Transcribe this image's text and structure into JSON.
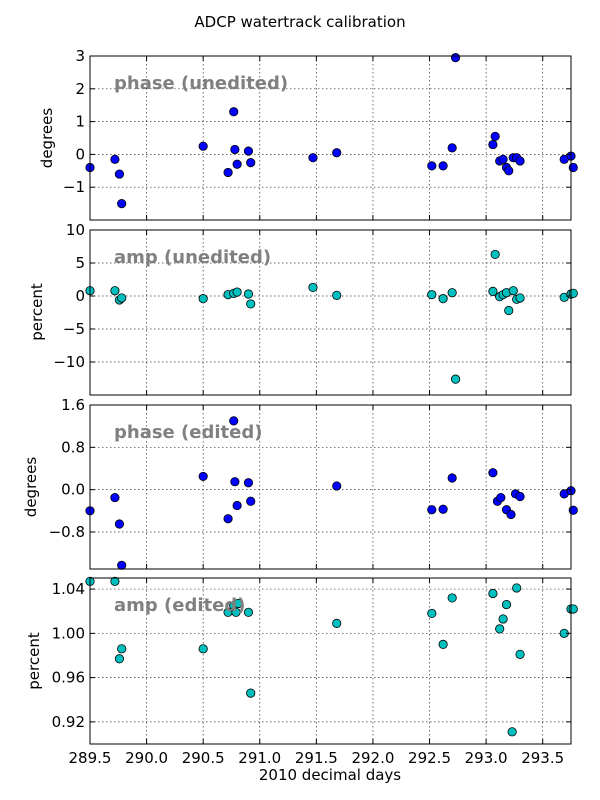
{
  "figure": {
    "title": "ADCP watertrack calibration",
    "xlabel": "2010 decimal days"
  },
  "colors": {
    "phase_marker": "#0000ff",
    "amp_marker": "#00bfbf",
    "annotation_text": "#808080"
  },
  "chart_data": [
    {
      "type": "scatter",
      "annotation": "phase (unedited)",
      "xlabel": "",
      "ylabel": "degrees",
      "xlim": [
        289.5,
        293.75
      ],
      "ylim": [
        -2,
        3
      ],
      "xticks": [
        289.5,
        290.0,
        290.5,
        291.0,
        291.5,
        292.0,
        292.5,
        293.0,
        293.5
      ],
      "yticks": [
        -1,
        0,
        1,
        2,
        3
      ],
      "ytick_labels": [
        "−1",
        "0",
        "1",
        "2",
        "3"
      ],
      "grid": true,
      "marker_color": "#0000ff",
      "x": [
        289.5,
        289.72,
        289.76,
        289.78,
        290.5,
        290.72,
        290.77,
        290.78,
        290.8,
        290.9,
        290.92,
        291.47,
        291.68,
        292.52,
        292.62,
        292.7,
        292.73,
        293.06,
        293.08,
        293.12,
        293.15,
        293.18,
        293.2,
        293.24,
        293.27,
        293.3,
        293.69,
        293.75,
        293.77
      ],
      "y": [
        -0.4,
        -0.15,
        -0.6,
        -1.5,
        0.25,
        -0.55,
        1.3,
        0.15,
        -0.3,
        0.1,
        -0.25,
        -0.1,
        0.05,
        -0.35,
        -0.35,
        0.2,
        2.95,
        0.3,
        0.55,
        -0.2,
        -0.15,
        -0.4,
        -0.5,
        -0.1,
        -0.1,
        -0.2,
        -0.15,
        -0.05,
        -0.4
      ]
    },
    {
      "type": "scatter",
      "annotation": "amp (unedited)",
      "xlabel": "",
      "ylabel": "percent",
      "xlim": [
        289.5,
        293.75
      ],
      "ylim": [
        -15,
        10
      ],
      "xticks": [
        289.5,
        290.0,
        290.5,
        291.0,
        291.5,
        292.0,
        292.5,
        293.0,
        293.5
      ],
      "yticks": [
        -10,
        -5,
        0,
        5,
        10
      ],
      "ytick_labels": [
        "−10",
        "−5",
        "0",
        "5",
        "10"
      ],
      "grid": true,
      "marker_color": "#00bfbf",
      "x": [
        289.5,
        289.72,
        289.76,
        289.78,
        290.5,
        290.72,
        290.77,
        290.8,
        290.9,
        290.92,
        291.47,
        291.68,
        292.52,
        292.62,
        292.7,
        292.73,
        293.06,
        293.08,
        293.12,
        293.15,
        293.18,
        293.2,
        293.24,
        293.27,
        293.3,
        293.69,
        293.75,
        293.77
      ],
      "y": [
        0.8,
        0.8,
        -0.6,
        -0.3,
        -0.4,
        0.2,
        0.4,
        0.6,
        0.3,
        -1.2,
        1.3,
        0.1,
        0.2,
        -0.4,
        0.5,
        -12.6,
        0.7,
        6.3,
        -0.1,
        0.2,
        0.5,
        -2.2,
        0.8,
        -0.5,
        -0.3,
        -0.2,
        0.3,
        0.4
      ]
    },
    {
      "type": "scatter",
      "annotation": "phase (edited)",
      "xlabel": "",
      "ylabel": "degrees",
      "xlim": [
        289.5,
        293.75
      ],
      "ylim": [
        -1.5,
        1.6
      ],
      "xticks": [
        289.5,
        290.0,
        290.5,
        291.0,
        291.5,
        292.0,
        292.5,
        293.0,
        293.5
      ],
      "yticks": [
        -0.8,
        0.0,
        0.8,
        1.6
      ],
      "ytick_labels": [
        "−0.8",
        "0.0",
        "0.8",
        "1.6"
      ],
      "grid": true,
      "marker_color": "#0000ff",
      "x": [
        289.5,
        289.72,
        289.76,
        289.78,
        290.5,
        290.72,
        290.77,
        290.78,
        290.8,
        290.9,
        290.92,
        291.68,
        292.52,
        292.62,
        292.7,
        293.06,
        293.1,
        293.13,
        293.18,
        293.22,
        293.26,
        293.3,
        293.69,
        293.75,
        293.77
      ],
      "y": [
        -0.4,
        -0.15,
        -0.65,
        -1.43,
        0.25,
        -0.55,
        1.3,
        0.15,
        -0.3,
        0.13,
        -0.22,
        0.07,
        -0.38,
        -0.37,
        0.22,
        0.32,
        -0.22,
        -0.15,
        -0.38,
        -0.47,
        -0.08,
        -0.13,
        -0.08,
        -0.02,
        -0.39
      ]
    },
    {
      "type": "scatter",
      "annotation": "amp (edited)",
      "xlabel": "2010 decimal days",
      "ylabel": "percent",
      "xlim": [
        289.5,
        293.75
      ],
      "ylim": [
        0.9,
        1.05
      ],
      "xticks": [
        289.5,
        290.0,
        290.5,
        291.0,
        291.5,
        292.0,
        292.5,
        293.0,
        293.5
      ],
      "xtick_labels": [
        "289.5",
        "290.0",
        "290.5",
        "291.0",
        "291.5",
        "292.0",
        "292.5",
        "293.0",
        "293.5"
      ],
      "yticks": [
        0.92,
        0.96,
        1.0,
        1.04
      ],
      "ytick_labels": [
        "0.92",
        "0.96",
        "1.00",
        "1.04"
      ],
      "grid": true,
      "marker_color": "#00bfbf",
      "x": [
        289.5,
        289.72,
        289.76,
        289.78,
        290.5,
        290.72,
        290.77,
        290.79,
        290.81,
        290.9,
        290.92,
        291.68,
        292.52,
        292.62,
        292.7,
        293.06,
        293.12,
        293.15,
        293.18,
        293.23,
        293.27,
        293.3,
        293.69,
        293.75,
        293.77
      ],
      "y": [
        1.047,
        1.047,
        0.977,
        0.986,
        0.986,
        1.019,
        1.025,
        1.019,
        1.027,
        1.019,
        0.946,
        1.009,
        1.018,
        0.99,
        1.032,
        1.036,
        1.004,
        1.013,
        1.026,
        0.911,
        1.041,
        0.981,
        1.0,
        1.022,
        1.022
      ]
    }
  ]
}
